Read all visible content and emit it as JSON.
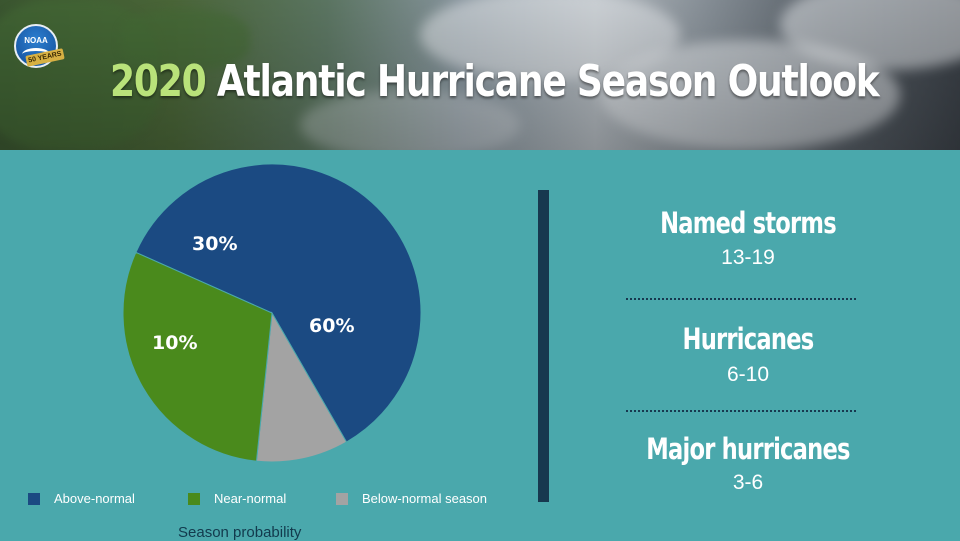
{
  "header": {
    "title_year": "2020",
    "title_rest": " Atlantic Hurricane Season Outlook",
    "logo_text": "NOAA",
    "logo_ribbon": "50 YEARS"
  },
  "colors": {
    "background": "#4aa8ac",
    "above_normal": "#1b4a82",
    "near_normal": "#4a8a1c",
    "below_normal": "#a3a3a3",
    "title_year": "#b9e27a",
    "divider": "#17384f"
  },
  "chart_data": {
    "type": "pie",
    "slices": [
      {
        "key": "above",
        "name": "Above-normal",
        "value": 60,
        "label": "60%"
      },
      {
        "key": "below",
        "name": "Below-normal season",
        "value": 10,
        "label": "10%"
      },
      {
        "key": "near",
        "name": "Near-normal",
        "value": 30,
        "label": "30%"
      }
    ],
    "caption": "Season probability",
    "legend_position": "bottom"
  },
  "stats": [
    {
      "name": "Named storms",
      "range": "13-19"
    },
    {
      "name": "Hurricanes",
      "range": "6-10"
    },
    {
      "name": "Major hurricanes",
      "range": "3-6"
    }
  ]
}
